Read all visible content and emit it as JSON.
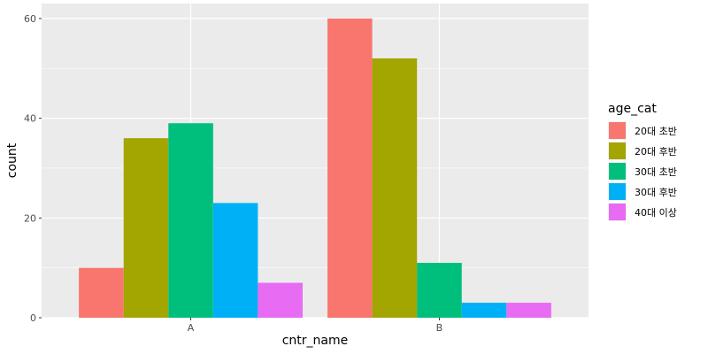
{
  "chart_data": {
    "type": "bar",
    "categories": [
      "A",
      "B"
    ],
    "series": [
      {
        "name": "20대 초반",
        "color": "#F8766D",
        "values": [
          10,
          60
        ]
      },
      {
        "name": "20대 후반",
        "color": "#A3A500",
        "values": [
          36,
          52
        ]
      },
      {
        "name": "30대 초반",
        "color": "#00BF7D",
        "values": [
          39,
          11
        ]
      },
      {
        "name": "30대 후반",
        "color": "#00B0F6",
        "values": [
          23,
          3
        ]
      },
      {
        "name": "40대 이상",
        "color": "#E76BF3",
        "values": [
          7,
          3
        ]
      }
    ],
    "xlabel": "cntr_name",
    "ylabel": "count",
    "legend_title": "age_cat",
    "legend_position": "right",
    "ylim": [
      0,
      63
    ],
    "yticks": [
      0,
      20,
      40,
      60
    ],
    "yticks_labels": [
      "0",
      "20",
      "40",
      "60"
    ],
    "grid": true,
    "panel_background": "#EBEBEB",
    "grid_color": "#FFFFFF"
  }
}
